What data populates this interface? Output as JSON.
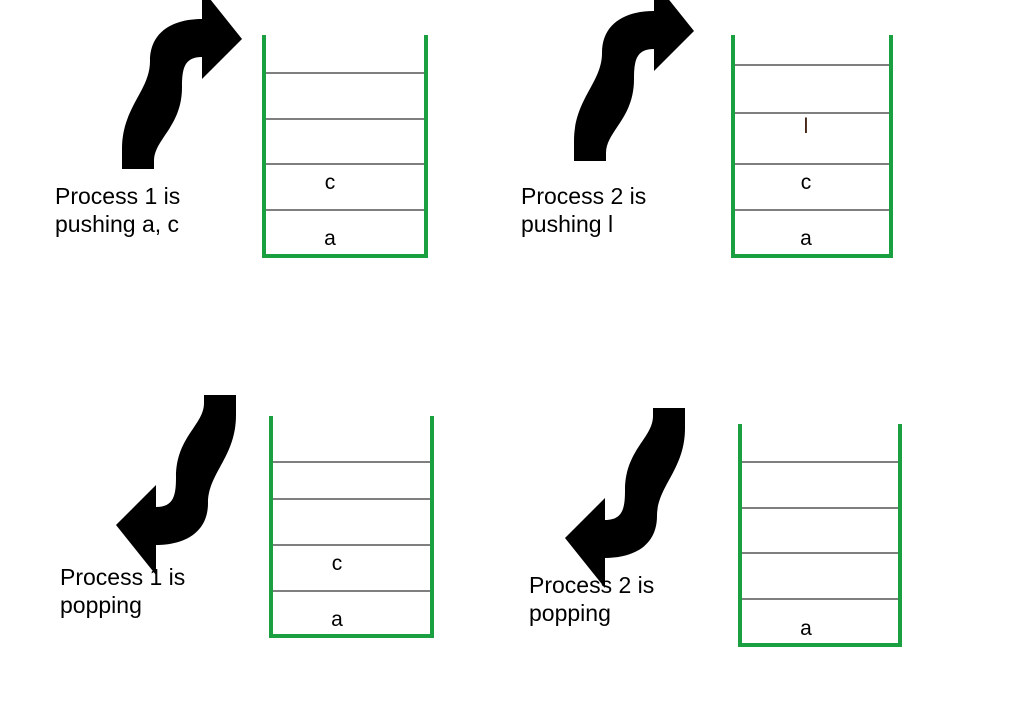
{
  "colors": {
    "stack_wall": "#1aa041",
    "divider": "#333333",
    "arrow": "#000000",
    "text": "#000000",
    "background": "#ffffff"
  },
  "panels": [
    {
      "label_line1": "Process 1 is",
      "label_line2": "pushing a, c",
      "arrow": "curved-arrow-up-right",
      "slots": [
        "",
        "",
        "c",
        "a"
      ]
    },
    {
      "label_line1": "Process 2 is",
      "label_line2": "pushing l",
      "arrow": "curved-arrow-up-right",
      "slots": [
        "",
        "l",
        "c",
        "a"
      ]
    },
    {
      "label_line1": "Process 1 is",
      "label_line2": "popping",
      "arrow": "curved-arrow-down-left",
      "slots": [
        "",
        "",
        "c",
        "a"
      ]
    },
    {
      "label_line1": "Process 2 is",
      "label_line2": "popping",
      "arrow": "curved-arrow-down-left",
      "slots": [
        "",
        "",
        "",
        "a"
      ]
    }
  ]
}
